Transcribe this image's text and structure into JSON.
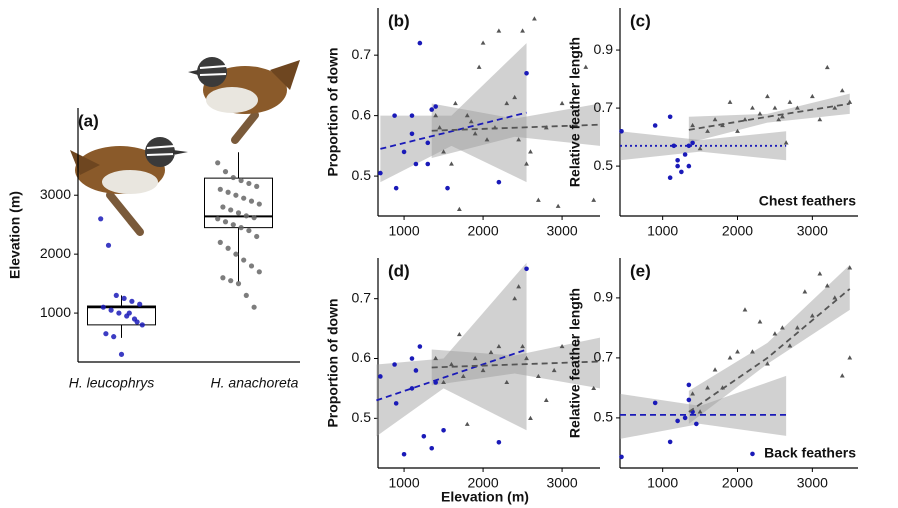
{
  "chart_data": [
    {
      "type": "box",
      "panel_label": "(a)",
      "ylabel": "Elevation (m)",
      "categories": [
        "H. leucophrys",
        "H. anachoreta"
      ],
      "colors": [
        "#1a1ab8",
        "#666666"
      ],
      "ylim": [
        170,
        4480
      ],
      "yticks": [
        1000,
        2000,
        3000
      ],
      "boxes": [
        {
          "min": 580,
          "q1": 800,
          "median": 1100,
          "q3": 1120,
          "max": 1300
        },
        {
          "min": 1530,
          "q1": 2450,
          "median": 2640,
          "q3": 3290,
          "max": 3730
        }
      ],
      "points": [
        [
          2600,
          2150,
          1300,
          1250,
          1200,
          1150,
          1100,
          1050,
          1000,
          950,
          900,
          800,
          650,
          600,
          300,
          1000,
          850
        ],
        [
          3550,
          3400,
          3300,
          3250,
          3200,
          3150,
          3100,
          3050,
          3000,
          2950,
          2900,
          2850,
          2800,
          2750,
          2700,
          2650,
          2620,
          2600,
          2550,
          2500,
          2450,
          2400,
          2300,
          2200,
          2100,
          2000,
          1900,
          1800,
          1700,
          1600,
          1550,
          1500,
          1300,
          1100
        ]
      ]
    },
    {
      "type": "scatter",
      "panel_label": "(b)",
      "ylabel": "Proportion of down",
      "xlim": [
        670,
        3480
      ],
      "ylim": [
        0.434,
        0.778
      ],
      "xticks": [
        1000,
        2000,
        3000
      ],
      "yticks": [
        0.5,
        0.6,
        0.7
      ],
      "series": [
        {
          "color": "#1a1ab8",
          "marker": "circle",
          "x": [
            700,
            880,
            900,
            1000,
            1100,
            1150,
            1200,
            1300,
            1300,
            1350,
            1400,
            1550,
            2200,
            2550,
            1100
          ],
          "values": [
            0.505,
            0.6,
            0.48,
            0.54,
            0.57,
            0.52,
            0.72,
            0.555,
            0.52,
            0.61,
            0.615,
            0.48,
            0.49,
            0.67,
            0.6
          ]
        },
        {
          "color": "#555555",
          "marker": "triangle",
          "x": [
            1400,
            1450,
            1500,
            1600,
            1650,
            1700,
            1800,
            1850,
            1900,
            1950,
            2000,
            2050,
            2150,
            2200,
            2300,
            2400,
            2450,
            2500,
            2550,
            2600,
            2650,
            2700,
            2800,
            2950,
            3000,
            3300,
            3400
          ],
          "values": [
            0.6,
            0.58,
            0.54,
            0.52,
            0.62,
            0.445,
            0.6,
            0.59,
            0.57,
            0.68,
            0.72,
            0.56,
            0.58,
            0.74,
            0.62,
            0.63,
            0.56,
            0.74,
            0.52,
            0.54,
            0.76,
            0.46,
            0.58,
            0.45,
            0.62,
            0.68,
            0.46
          ]
        }
      ],
      "fits": [
        {
          "color": "#1a1ab8",
          "dash": "dashed",
          "x": [
            700,
            1600,
            2550
          ],
          "values": [
            0.545,
            0.574,
            0.605
          ],
          "lower": [
            0.49,
            0.55,
            0.49
          ],
          "upper": [
            0.6,
            0.6,
            0.72
          ]
        },
        {
          "color": "#555555",
          "dash": "dashed",
          "x": [
            1350,
            2400,
            3480
          ],
          "values": [
            0.575,
            0.58,
            0.585
          ],
          "lower": [
            0.53,
            0.565,
            0.55
          ],
          "upper": [
            0.62,
            0.595,
            0.62
          ]
        }
      ]
    },
    {
      "type": "scatter",
      "panel_label": "(c)",
      "ylabel": "Relative feather length",
      "annotation": "Chest feathers",
      "xlim": [
        430,
        3610
      ],
      "ylim": [
        0.328,
        1.045
      ],
      "xticks": [
        1000,
        2000,
        3000
      ],
      "yticks": [
        0.5,
        0.7,
        0.9
      ],
      "series": [
        {
          "color": "#1a1ab8",
          "marker": "circle",
          "x": [
            450,
            900,
            1100,
            1150,
            1200,
            1200,
            1250,
            1300,
            1350,
            1350,
            1100,
            1400
          ],
          "values": [
            0.62,
            0.64,
            0.46,
            0.57,
            0.5,
            0.52,
            0.48,
            0.54,
            0.57,
            0.5,
            0.67,
            0.58
          ]
        },
        {
          "color": "#555555",
          "marker": "triangle",
          "x": [
            1400,
            1500,
            1600,
            1700,
            1800,
            1900,
            2000,
            2100,
            2200,
            2300,
            2400,
            2500,
            2550,
            2600,
            2650,
            2700,
            2800,
            3000,
            3100,
            3200,
            3300,
            3400,
            3500
          ],
          "values": [
            0.64,
            0.56,
            0.62,
            0.66,
            0.64,
            0.72,
            0.62,
            0.66,
            0.7,
            0.68,
            0.74,
            0.7,
            0.66,
            0.67,
            0.58,
            0.72,
            0.7,
            0.74,
            0.66,
            0.84,
            0.7,
            0.76,
            0.72
          ]
        }
      ],
      "fits": [
        {
          "color": "#1a1ab8",
          "dash": "dotted",
          "x": [
            430,
            1500,
            2650
          ],
          "values": [
            0.57,
            0.57,
            0.57
          ],
          "lower": [
            0.52,
            0.55,
            0.52
          ],
          "upper": [
            0.62,
            0.59,
            0.62
          ]
        },
        {
          "color": "#555555",
          "dash": "dashed",
          "x": [
            1350,
            2400,
            3500
          ],
          "values": [
            0.625,
            0.67,
            0.715
          ],
          "lower": [
            0.58,
            0.65,
            0.68
          ],
          "upper": [
            0.67,
            0.68,
            0.75
          ]
        }
      ]
    },
    {
      "type": "scatter",
      "panel_label": "(d)",
      "ylabel": "Proportion of down",
      "xlabel": "Elevation (m)",
      "xlim": [
        670,
        3480
      ],
      "ylim": [
        0.417,
        0.768
      ],
      "xticks": [
        1000,
        2000,
        3000
      ],
      "yticks": [
        0.5,
        0.6,
        0.7
      ],
      "series": [
        {
          "color": "#1a1ab8",
          "marker": "circle",
          "x": [
            700,
            880,
            900,
            1000,
            1100,
            1150,
            1200,
            1250,
            1350,
            1400,
            1500,
            2200,
            2550,
            1100
          ],
          "values": [
            0.57,
            0.59,
            0.525,
            0.44,
            0.6,
            0.58,
            0.62,
            0.47,
            0.45,
            0.56,
            0.48,
            0.46,
            0.75,
            0.55
          ]
        },
        {
          "color": "#555555",
          "marker": "triangle",
          "x": [
            1400,
            1500,
            1600,
            1700,
            1750,
            1800,
            1900,
            2000,
            2100,
            2200,
            2300,
            2400,
            2450,
            2500,
            2550,
            2600,
            2700,
            2800,
            2900,
            3000,
            3200,
            3400
          ],
          "values": [
            0.6,
            0.56,
            0.59,
            0.64,
            0.57,
            0.49,
            0.6,
            0.58,
            0.61,
            0.62,
            0.56,
            0.7,
            0.72,
            0.62,
            0.6,
            0.5,
            0.57,
            0.53,
            0.58,
            0.62,
            0.63,
            0.55
          ]
        }
      ],
      "fits": [
        {
          "color": "#1a1ab8",
          "dash": "dashed",
          "x": [
            650,
            1500,
            2550
          ],
          "values": [
            0.53,
            0.568,
            0.615
          ],
          "lower": [
            0.47,
            0.55,
            0.48
          ],
          "upper": [
            0.59,
            0.6,
            0.76
          ]
        },
        {
          "color": "#555555",
          "dash": "dashed",
          "x": [
            1350,
            2400,
            3480
          ],
          "values": [
            0.585,
            0.59,
            0.595
          ],
          "lower": [
            0.555,
            0.575,
            0.55
          ],
          "upper": [
            0.615,
            0.605,
            0.635
          ]
        }
      ]
    },
    {
      "type": "scatter",
      "panel_label": "(e)",
      "ylabel": "Relative feather length",
      "annotation": "Back feathers",
      "xlim": [
        430,
        3610
      ],
      "ylim": [
        0.333,
        1.033
      ],
      "xticks": [
        1000,
        2000,
        3000
      ],
      "yticks": [
        0.5,
        0.7,
        0.9
      ],
      "series": [
        {
          "color": "#1a1ab8",
          "marker": "circle",
          "x": [
            450,
            900,
            1100,
            1200,
            1300,
            1350,
            1400,
            1450,
            2200,
            1350
          ],
          "values": [
            0.37,
            0.55,
            0.42,
            0.49,
            0.5,
            0.56,
            0.52,
            0.48,
            0.38,
            0.61
          ]
        },
        {
          "color": "#555555",
          "marker": "triangle",
          "x": [
            1400,
            1500,
            1600,
            1700,
            1800,
            1900,
            2000,
            2100,
            2200,
            2300,
            2400,
            2500,
            2600,
            2700,
            2800,
            2900,
            3000,
            3100,
            3200,
            3300,
            3400,
            3500,
            3500
          ],
          "values": [
            0.58,
            0.52,
            0.6,
            0.66,
            0.6,
            0.7,
            0.72,
            0.86,
            0.72,
            0.82,
            0.68,
            0.78,
            0.8,
            0.74,
            0.8,
            0.92,
            0.84,
            0.98,
            0.94,
            0.9,
            0.64,
            1.0,
            0.7
          ]
        }
      ],
      "fits": [
        {
          "color": "#1a1ab8",
          "dash": "dashed",
          "x": [
            430,
            1500,
            2650
          ],
          "values": [
            0.51,
            0.51,
            0.51
          ],
          "lower": [
            0.43,
            0.48,
            0.44
          ],
          "upper": [
            0.58,
            0.54,
            0.64
          ]
        },
        {
          "color": "#555555",
          "dash": "dashed",
          "x": [
            1350,
            2400,
            3500
          ],
          "values": [
            0.52,
            0.7,
            0.93
          ],
          "lower": [
            0.48,
            0.68,
            0.86
          ],
          "upper": [
            0.59,
            0.75,
            1.01
          ]
        }
      ]
    }
  ]
}
